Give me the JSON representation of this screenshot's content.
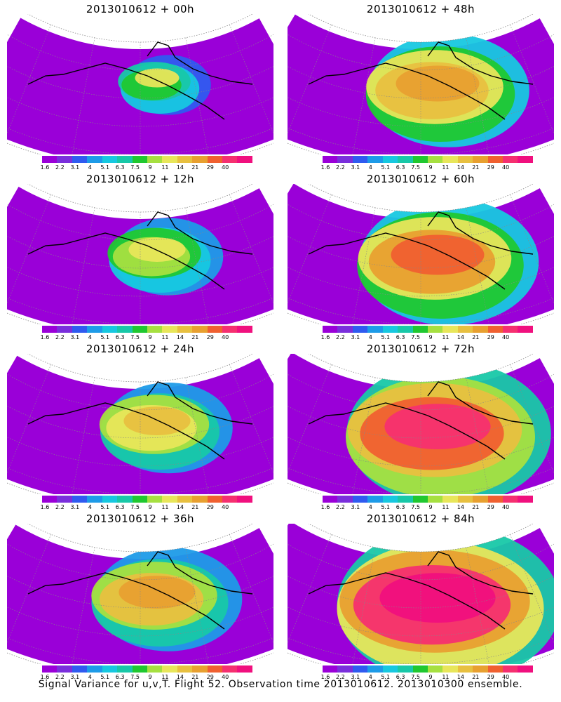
{
  "colorbar": {
    "labels": [
      "1.6",
      "2.2",
      "3.1",
      "4",
      "5.1",
      "6.3",
      "7.5",
      "9",
      "11",
      "14",
      "21",
      "29",
      "40"
    ],
    "colors": [
      "#9a00d8",
      "#7a2fdc",
      "#2f5bf0",
      "#1d9be8",
      "#17c8e0",
      "#18c8a8",
      "#20c830",
      "#a6e040",
      "#e8e65a",
      "#e8c040",
      "#e8a030",
      "#f06030",
      "#f53070",
      "#f0107e"
    ]
  },
  "panels": [
    {
      "title": "2013010612 + 00h",
      "intensity": 0.05
    },
    {
      "title": "2013010612 + 48h",
      "intensity": 0.45
    },
    {
      "title": "2013010612 + 12h",
      "intensity": 0.18
    },
    {
      "title": "2013010612 + 60h",
      "intensity": 0.55
    },
    {
      "title": "2013010612 + 24h",
      "intensity": 0.28
    },
    {
      "title": "2013010612 + 72h",
      "intensity": 0.68
    },
    {
      "title": "2013010612 + 36h",
      "intensity": 0.38
    },
    {
      "title": "2013010612 + 84h",
      "intensity": 0.78
    }
  ],
  "caption": "Signal Variance for u,v,T. Flight 52. Observation time 2013010612. 2013010300 ensemble."
}
